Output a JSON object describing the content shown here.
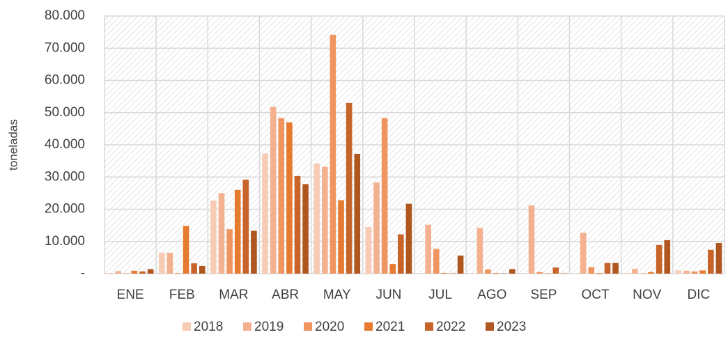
{
  "chart_data": {
    "type": "bar",
    "y_label": "toneladas",
    "categories": [
      "ENE",
      "FEB",
      "MAR",
      "ABR",
      "MAY",
      "JUN",
      "JUL",
      "AGO",
      "SEP",
      "OCT",
      "NOV",
      "DIC"
    ],
    "series": [
      {
        "name": "2018",
        "color": "#f8cbb4",
        "values": [
          200,
          6500,
          22700,
          37300,
          34200,
          14500,
          100,
          100,
          100,
          100,
          200,
          1000
        ]
      },
      {
        "name": "2019",
        "color": "#f4b18f",
        "values": [
          800,
          6500,
          25000,
          51800,
          33200,
          28300,
          15200,
          14200,
          21200,
          12700,
          1500,
          900
        ]
      },
      {
        "name": "2020",
        "color": "#f0955f",
        "values": [
          100,
          200,
          13800,
          48300,
          74200,
          48300,
          7700,
          1300,
          500,
          2000,
          100,
          700
        ]
      },
      {
        "name": "2021",
        "color": "#e67a2f",
        "values": [
          900,
          14800,
          26000,
          47000,
          22800,
          3000,
          200,
          200,
          100,
          200,
          500,
          1000
        ]
      },
      {
        "name": "2022",
        "color": "#c8642a",
        "values": [
          700,
          3200,
          29200,
          30300,
          53000,
          12200,
          100,
          100,
          1900,
          3300,
          8900,
          7400
        ]
      },
      {
        "name": "2023",
        "color": "#b0561f",
        "values": [
          1400,
          2400,
          13300,
          27800,
          37200,
          21700,
          5600,
          1400,
          100,
          3300,
          10400,
          9500
        ]
      }
    ],
    "ylim": [
      0,
      80000
    ],
    "yticks": [
      {
        "value": 0,
        "label": "-"
      },
      {
        "value": 10000,
        "label": "10.000"
      },
      {
        "value": 20000,
        "label": "20.000"
      },
      {
        "value": 30000,
        "label": "30.000"
      },
      {
        "value": 40000,
        "label": "40.000"
      },
      {
        "value": 50000,
        "label": "50.000"
      },
      {
        "value": 60000,
        "label": "60.000"
      },
      {
        "value": 70000,
        "label": "70.000"
      },
      {
        "value": 80000,
        "label": "80.000"
      }
    ],
    "grid": true,
    "legend": "bottom"
  }
}
